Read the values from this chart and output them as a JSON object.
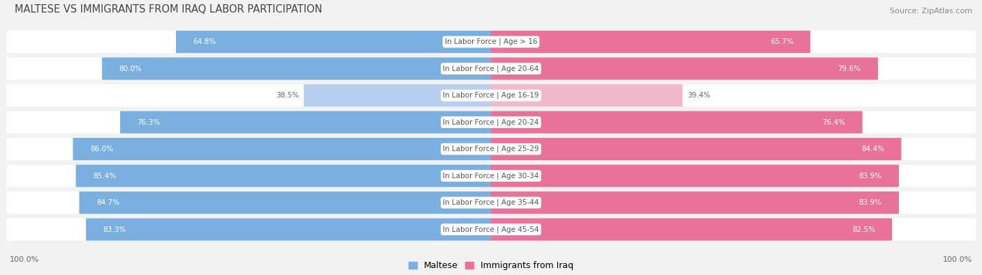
{
  "title": "MALTESE VS IMMIGRANTS FROM IRAQ LABOR PARTICIPATION",
  "source": "Source: ZipAtlas.com",
  "categories": [
    "In Labor Force | Age > 16",
    "In Labor Force | Age 20-64",
    "In Labor Force | Age 16-19",
    "In Labor Force | Age 20-24",
    "In Labor Force | Age 25-29",
    "In Labor Force | Age 30-34",
    "In Labor Force | Age 35-44",
    "In Labor Force | Age 45-54"
  ],
  "maltese_values": [
    64.8,
    80.0,
    38.5,
    76.3,
    86.0,
    85.4,
    84.7,
    83.3
  ],
  "iraq_values": [
    65.7,
    79.6,
    39.4,
    76.4,
    84.4,
    83.9,
    83.9,
    82.5
  ],
  "maltese_color_full": "#7aafe0",
  "maltese_color_light": "#b8d0ef",
  "iraq_color_full": "#e8729a",
  "iraq_color_light": "#f2b8cc",
  "label_color_white": "#ffffff",
  "label_color_dark": "#666666",
  "center_label_color": "#555555",
  "background_color": "#f2f2f2",
  "row_bg_color": "#e8e8e8",
  "bar_bg_color": "#ffffff",
  "legend_maltese": "Maltese",
  "legend_iraq": "Immigrants from Iraq",
  "bottom_left_label": "100.0%",
  "bottom_right_label": "100.0%",
  "max_value": 100.0
}
